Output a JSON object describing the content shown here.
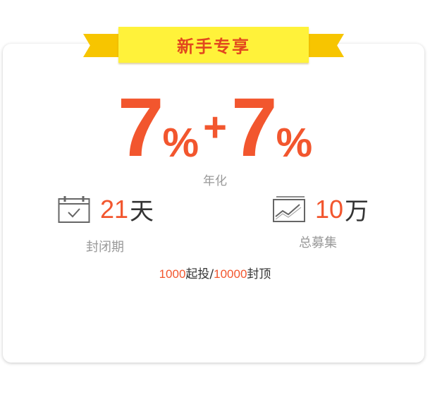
{
  "ribbon": {
    "title": "新手专享"
  },
  "rate": {
    "base_value": "7",
    "base_unit": "%",
    "plus": "+",
    "bonus_value": "7",
    "bonus_unit": "%",
    "label": "年化"
  },
  "stats": {
    "term": {
      "value": "21",
      "unit": "天",
      "label": "封闭期",
      "icon": "calendar-icon"
    },
    "total": {
      "value": "10",
      "unit": "万",
      "label": "总募集",
      "icon": "trend-chart-icon"
    }
  },
  "invest": {
    "min": "1000",
    "min_text": "起投/",
    "max": "10000",
    "max_text": "封顶"
  },
  "colors": {
    "accent": "#f2562e",
    "ribbon": "#fff23a",
    "ribbon_tail": "#f7c500",
    "muted": "#999999"
  }
}
